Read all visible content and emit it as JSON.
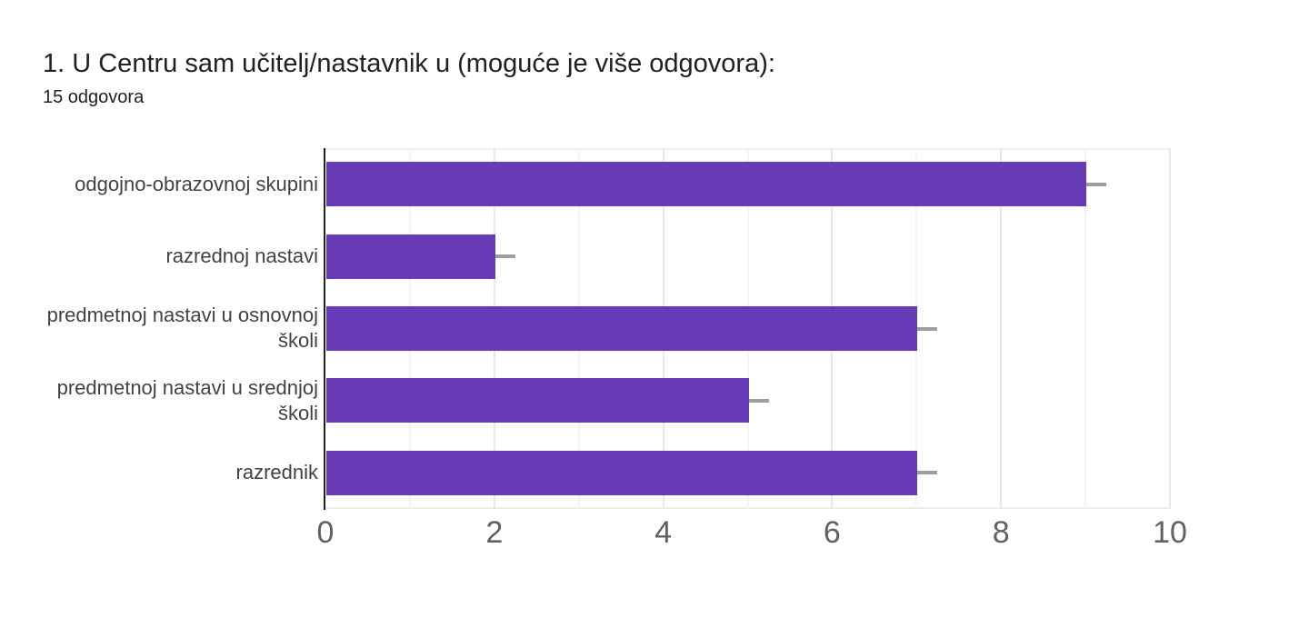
{
  "header": {
    "title": "1. U Centru sam učitelj/nastavnik u (moguće je više odgovora):",
    "responses_count": "15 odgovora"
  },
  "chart_data": {
    "type": "bar",
    "orientation": "horizontal",
    "title": "1. U Centru sam učitelj/nastavnik u (moguće je više odgovora):",
    "subtitle": "15 odgovora",
    "categories": [
      "odgojno-obrazovnoj skupini",
      "razrednoj nastavi",
      "predmetnoj nastavi u osnovnoj\nškoli",
      "predmetnoj nastavi u srednjoj\nškoli",
      "razrednik"
    ],
    "values": [
      9,
      2,
      7,
      5,
      7
    ],
    "xlim": [
      0,
      10
    ],
    "x_ticks": [
      0,
      2,
      4,
      6,
      8,
      10
    ],
    "x_minor_ticks": [
      1,
      3,
      5,
      7,
      9
    ],
    "grid": true,
    "legend": "none",
    "bar_color": "#673ab7",
    "whisker_color": "#9e9e9e",
    "axis_line_color": "#212121",
    "grid_major_color": "#e8e8e8",
    "grid_minor_color": "#f4f4f4"
  }
}
